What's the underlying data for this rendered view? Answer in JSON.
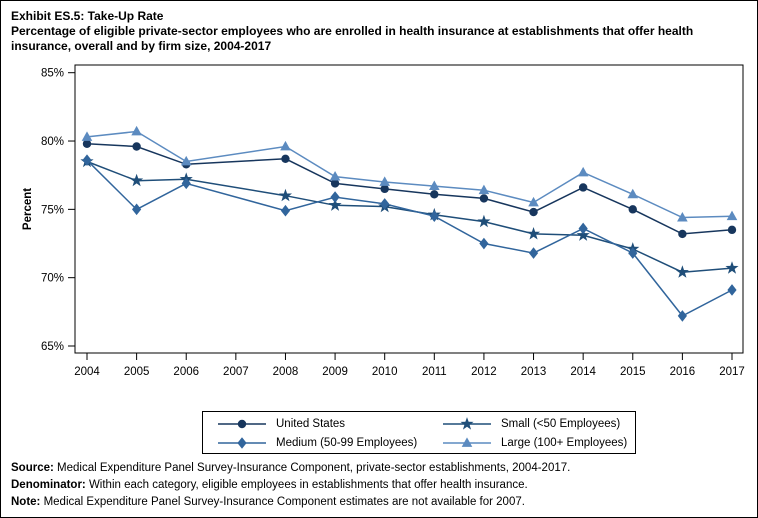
{
  "title": "Exhibit ES.5: Take-Up Rate",
  "subtitle": "Percentage of eligible private-sector employees who are enrolled in health insurance at establishments that offer health insurance, overall and by firm size, 2004-2017",
  "chart_data": {
    "type": "line",
    "ylabel": "Percent",
    "ylim": [
      65,
      85
    ],
    "yticks": [
      85,
      80,
      75,
      70,
      65
    ],
    "ytick_labels": [
      "85%",
      "80%",
      "75%",
      "70%",
      "65%"
    ],
    "x": [
      2004,
      2005,
      2006,
      2007,
      2008,
      2009,
      2010,
      2011,
      2012,
      2013,
      2014,
      2015,
      2016,
      2017
    ],
    "grid": false,
    "legend_position": "bottom",
    "missing_note": "2007 estimates not available",
    "series": [
      {
        "name": "United States",
        "marker": "circle",
        "color": "#17365D",
        "values": [
          79.8,
          79.6,
          78.3,
          null,
          78.7,
          76.9,
          76.5,
          76.1,
          75.8,
          74.8,
          76.6,
          75.0,
          73.2,
          73.5
        ]
      },
      {
        "name": "Small (<50 Employees)",
        "marker": "star",
        "color": "#1F4E79",
        "values": [
          78.5,
          77.1,
          77.2,
          null,
          76.0,
          75.3,
          75.2,
          74.6,
          74.1,
          73.2,
          73.1,
          72.1,
          70.4,
          70.7
        ]
      },
      {
        "name": "Medium (50-99 Employees)",
        "marker": "diamond",
        "color": "#31659C",
        "values": [
          78.6,
          75.0,
          76.9,
          null,
          74.9,
          75.9,
          75.4,
          74.5,
          72.5,
          71.8,
          73.6,
          71.8,
          67.2,
          69.1
        ]
      },
      {
        "name": "Large (100+ Employees)",
        "marker": "triangle",
        "color": "#5C8BC0",
        "values": [
          80.3,
          80.7,
          78.5,
          null,
          79.6,
          77.4,
          77.0,
          76.7,
          76.4,
          75.5,
          77.7,
          76.1,
          74.4,
          74.5
        ]
      }
    ]
  },
  "footnotes": [
    {
      "label": "Source:",
      "text": " Medical Expenditure Panel Survey-Insurance Component, private-sector establishments, 2004-2017."
    },
    {
      "label": "Denominator:",
      "text": " Within each category, eligible employees in establishments that offer health insurance."
    },
    {
      "label": "Note:",
      "text": " Medical Expenditure Panel Survey-Insurance Component estimates are not available for 2007."
    }
  ]
}
